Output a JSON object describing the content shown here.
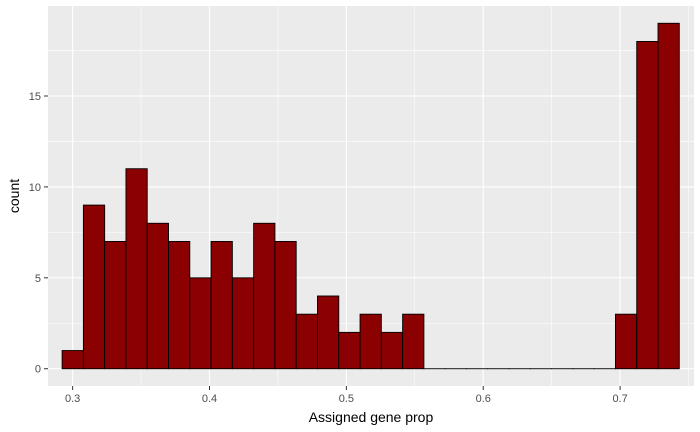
{
  "chart_data": {
    "type": "bar",
    "subtype": "histogram",
    "title": "",
    "xlabel": "Assigned gene prop",
    "ylabel": "count",
    "xlim": [
      0.282,
      0.754
    ],
    "ylim": [
      -0.95,
      19.95
    ],
    "x_ticks": [
      {
        "value": 0.3,
        "label": "0.3"
      },
      {
        "value": 0.4,
        "label": "0.4"
      },
      {
        "value": 0.5,
        "label": "0.5"
      },
      {
        "value": 0.6,
        "label": "0.6"
      },
      {
        "value": 0.7,
        "label": "0.7"
      }
    ],
    "y_ticks": [
      {
        "value": 0,
        "label": "0"
      },
      {
        "value": 5,
        "label": "5"
      },
      {
        "value": 10,
        "label": "10"
      },
      {
        "value": 15,
        "label": "15"
      }
    ],
    "bin_start": 0.2923,
    "bin_width": 0.01555,
    "values": [
      1,
      9,
      7,
      11,
      8,
      7,
      5,
      7,
      5,
      8,
      7,
      3,
      4,
      2,
      3,
      2,
      3,
      0,
      0,
      0,
      0,
      0,
      0,
      0,
      0,
      0,
      3,
      18,
      19
    ],
    "grid": true,
    "legend": "none",
    "colors": {
      "panel": "#ebebeb",
      "grid": "#ffffff",
      "bar_fill": "#8b0000",
      "bar_stroke": "#000000"
    }
  }
}
